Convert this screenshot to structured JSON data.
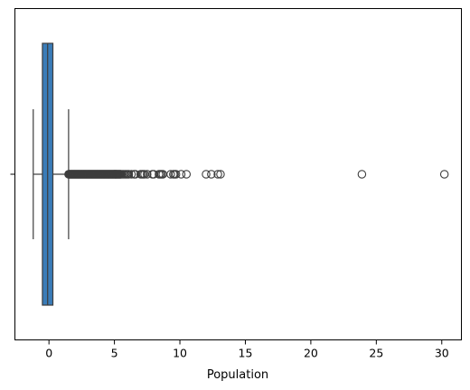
{
  "chart_data": {
    "type": "box",
    "orientation": "horizontal",
    "xlabel": "Population",
    "ylabel": "",
    "xlim": [
      -2.6,
      31.5
    ],
    "xticks": [
      0,
      5,
      10,
      15,
      20,
      25,
      30
    ],
    "ytick_labels": [
      ""
    ],
    "grid": false,
    "box": {
      "color": "#3a7cb8",
      "whisker_low": -1.2,
      "q1": -0.5,
      "median": -0.1,
      "q3": 0.3,
      "whisker_high": 1.5
    },
    "outlier_range": [
      1.5,
      5.5
    ],
    "outliers": [
      5.6,
      5.7,
      5.8,
      5.9,
      6.0,
      6.1,
      6.3,
      6.5,
      6.6,
      7.0,
      7.1,
      7.2,
      7.3,
      7.5,
      7.9,
      8.0,
      8.4,
      8.5,
      8.6,
      8.7,
      9.3,
      9.5,
      9.6,
      9.7,
      10.1,
      10.5,
      12.0,
      12.4,
      12.9,
      13.1,
      23.9,
      30.2
    ]
  }
}
